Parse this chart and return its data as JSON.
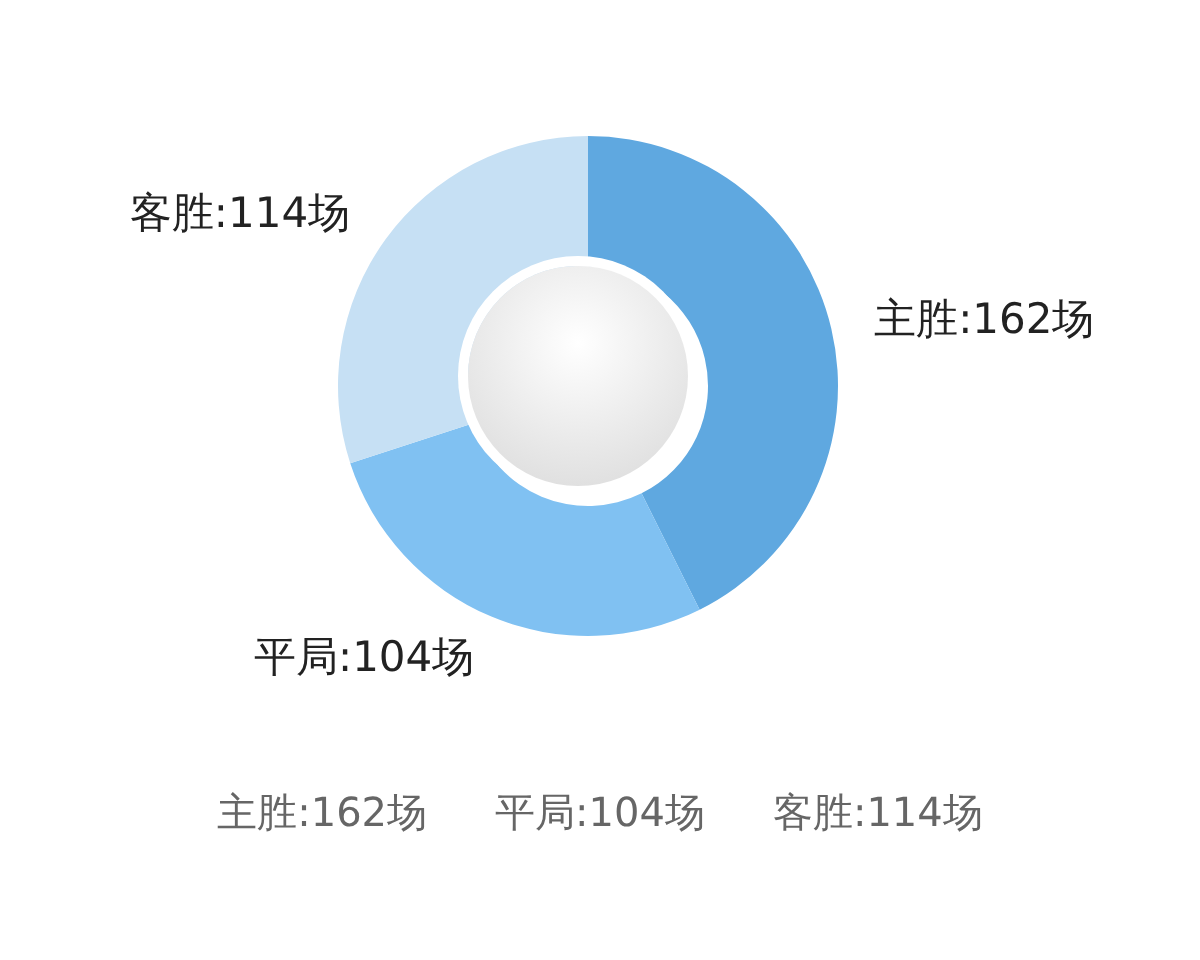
{
  "chart_data": {
    "type": "donut",
    "categories": [
      "主胜",
      "平局",
      "客胜"
    ],
    "values": [
      162,
      104,
      114
    ],
    "colors": [
      "#5fa8e0",
      "#80c1f2",
      "#c6e0f4"
    ],
    "value_labels": [
      ":162场",
      ":104场",
      ":114场"
    ],
    "annotations": [
      "主胜:162场",
      "平局:104场",
      "客胜:114场"
    ],
    "legend": false
  }
}
